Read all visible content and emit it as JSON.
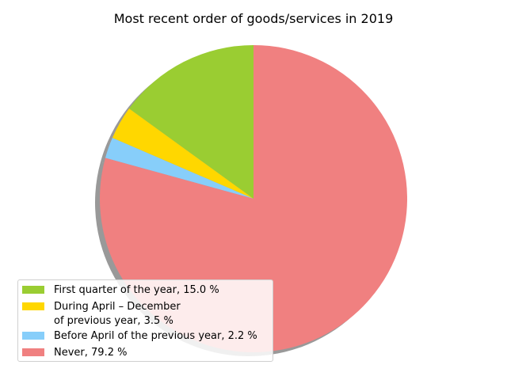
{
  "chart_data": {
    "type": "pie",
    "title": "Most recent order of goods/services in 2019",
    "slices": [
      {
        "label": "First quarter of the year, 15.0 %",
        "value": 15.0,
        "color": "#9acd32"
      },
      {
        "label": "During April – December\nof previous year, 3.5 %",
        "value": 3.5,
        "color": "#ffd700"
      },
      {
        "label": "Before April of the previous year, 2.2 %",
        "value": 2.2,
        "color": "#87cefa"
      },
      {
        "label": "Never, 79.2 %",
        "value": 79.2,
        "color": "#f08080"
      }
    ],
    "start_angle_deg": 90,
    "direction": "counterclockwise",
    "shadow": true,
    "legend_position": "lower-left"
  }
}
